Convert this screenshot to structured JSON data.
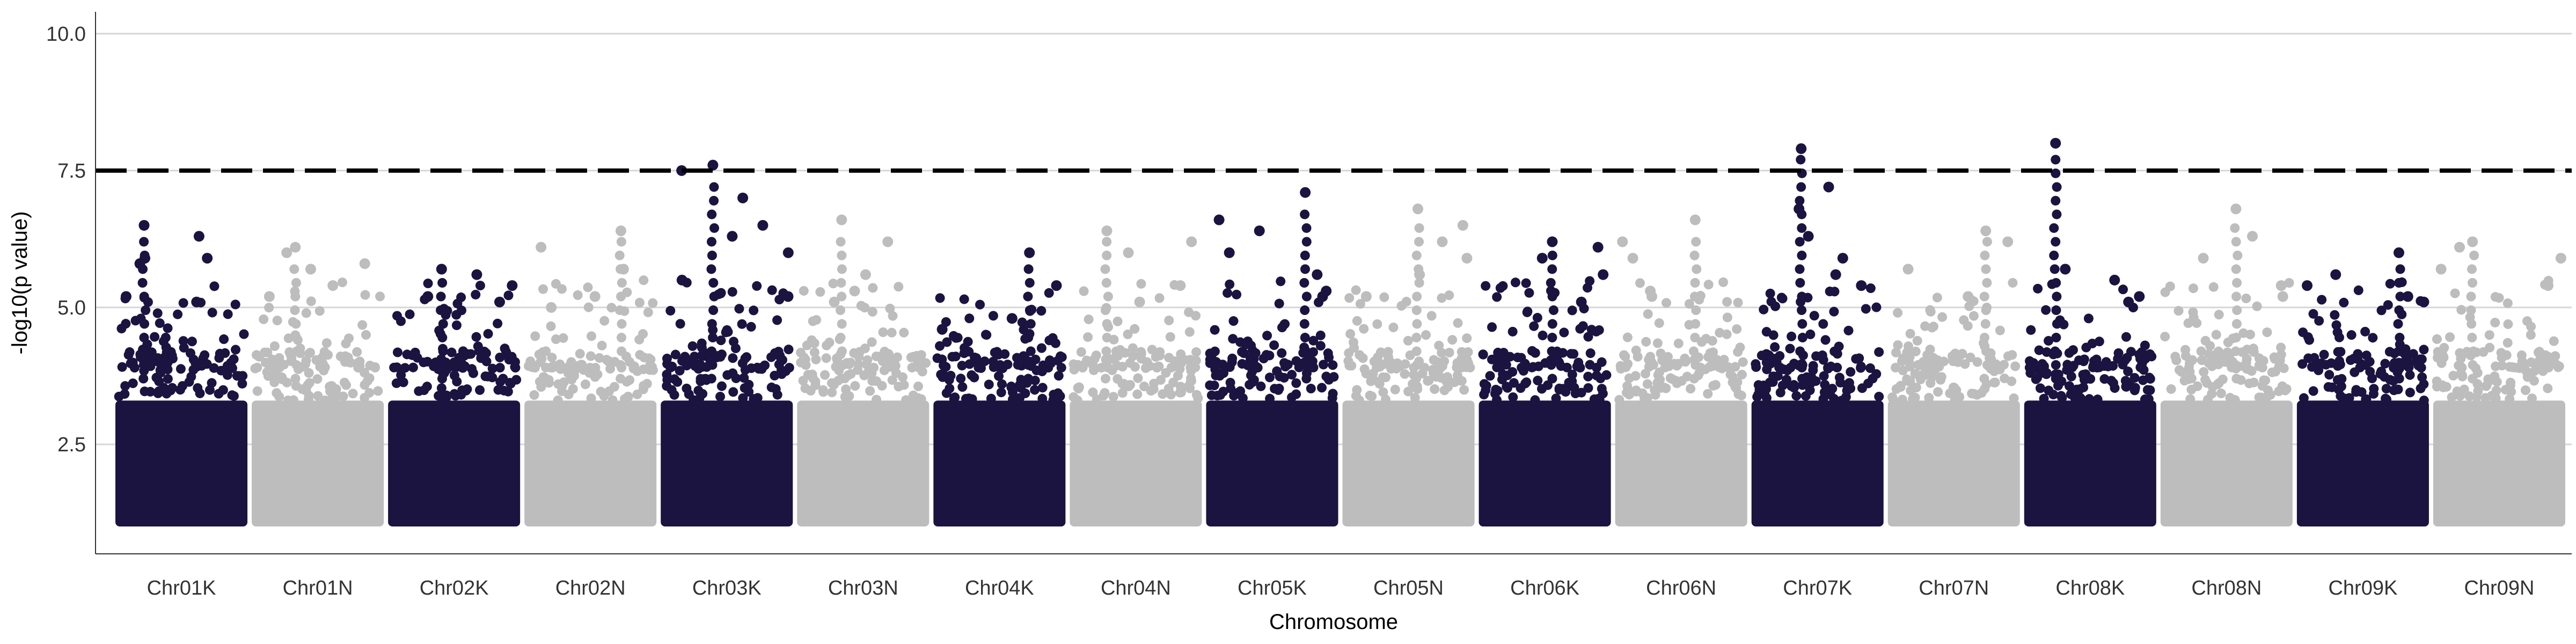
{
  "chart_data": {
    "type": "scatter",
    "subtype": "manhattan",
    "title": "",
    "xlabel": "Chromosome",
    "ylabel": "-log10(p value)",
    "ylim": [
      0.5,
      10.4
    ],
    "yticks": [
      2.5,
      5.0,
      7.5,
      10.0
    ],
    "ytick_labels": [
      "2.5",
      "5.0",
      "7.5",
      "10.0"
    ],
    "categories": [
      "Chr01K",
      "Chr01N",
      "Chr02K",
      "Chr02N",
      "Chr03K",
      "Chr03N",
      "Chr04K",
      "Chr04N",
      "Chr05K",
      "Chr05N",
      "Chr06K",
      "Chr06N",
      "Chr07K",
      "Chr07N",
      "Chr08K",
      "Chr08N",
      "Chr09K",
      "Chr09N"
    ],
    "series_colors": [
      "#1b1340",
      "#bdbdbd"
    ],
    "threshold": {
      "y": 7.5,
      "style": "dashed",
      "color": "#000000"
    },
    "grid": {
      "horizontal_major": true,
      "vertical": false
    },
    "bulk_range": [
      1.0,
      3.3
    ],
    "peaks_per_chromosome": [
      {
        "chr": "Chr01K",
        "max": 6.5,
        "notable": [
          6.5,
          6.3,
          5.9,
          5.8,
          5.9,
          5.2,
          5.1
        ]
      },
      {
        "chr": "Chr01N",
        "max": 6.1,
        "notable": [
          6.1,
          6.0,
          5.8,
          5.7,
          5.4,
          5.2
        ]
      },
      {
        "chr": "Chr02K",
        "max": 5.7,
        "notable": [
          5.7,
          5.6,
          5.4,
          5.2,
          5.1
        ]
      },
      {
        "chr": "Chr02N",
        "max": 6.4,
        "notable": [
          6.4,
          6.1,
          5.7,
          5.2,
          5.0
        ]
      },
      {
        "chr": "Chr03K",
        "max": 7.6,
        "notable": [
          7.6,
          7.5,
          7.0,
          6.5,
          6.3,
          6.0,
          5.5,
          5.2
        ]
      },
      {
        "chr": "Chr03N",
        "max": 6.6,
        "notable": [
          6.6,
          6.2,
          5.6,
          5.3,
          5.1
        ]
      },
      {
        "chr": "Chr04K",
        "max": 6.0,
        "notable": [
          6.0,
          5.4,
          4.8,
          4.6
        ]
      },
      {
        "chr": "Chr04N",
        "max": 6.4,
        "notable": [
          6.4,
          6.2,
          6.0,
          5.4,
          5.1
        ]
      },
      {
        "chr": "Chr05K",
        "max": 7.1,
        "notable": [
          7.1,
          6.6,
          6.4,
          6.0,
          5.6,
          5.3,
          5.2
        ]
      },
      {
        "chr": "Chr05N",
        "max": 6.8,
        "notable": [
          6.8,
          6.5,
          6.2,
          5.9,
          5.6,
          5.2
        ]
      },
      {
        "chr": "Chr06K",
        "max": 6.2,
        "notable": [
          6.2,
          6.1,
          5.9,
          5.6,
          5.1
        ]
      },
      {
        "chr": "Chr06N",
        "max": 6.6,
        "notable": [
          6.6,
          6.2,
          5.9,
          5.3,
          5.2
        ]
      },
      {
        "chr": "Chr07K",
        "max": 7.9,
        "notable": [
          7.9,
          7.2,
          6.8,
          6.3,
          5.9,
          5.6,
          5.4
        ]
      },
      {
        "chr": "Chr07N",
        "max": 6.4,
        "notable": [
          6.4,
          6.2,
          5.7,
          5.2
        ]
      },
      {
        "chr": "Chr08K",
        "max": 8.0,
        "notable": [
          8.0,
          5.7,
          5.5,
          5.2,
          5.1
        ]
      },
      {
        "chr": "Chr08N",
        "max": 6.8,
        "notable": [
          6.8,
          6.3,
          5.9,
          5.4,
          5.2
        ]
      },
      {
        "chr": "Chr09K",
        "max": 6.0,
        "notable": [
          6.0,
          5.6,
          5.4,
          5.2,
          5.1
        ]
      },
      {
        "chr": "Chr09N",
        "max": 6.2,
        "notable": [
          6.2,
          6.1,
          5.9,
          5.7,
          5.4
        ]
      }
    ]
  }
}
